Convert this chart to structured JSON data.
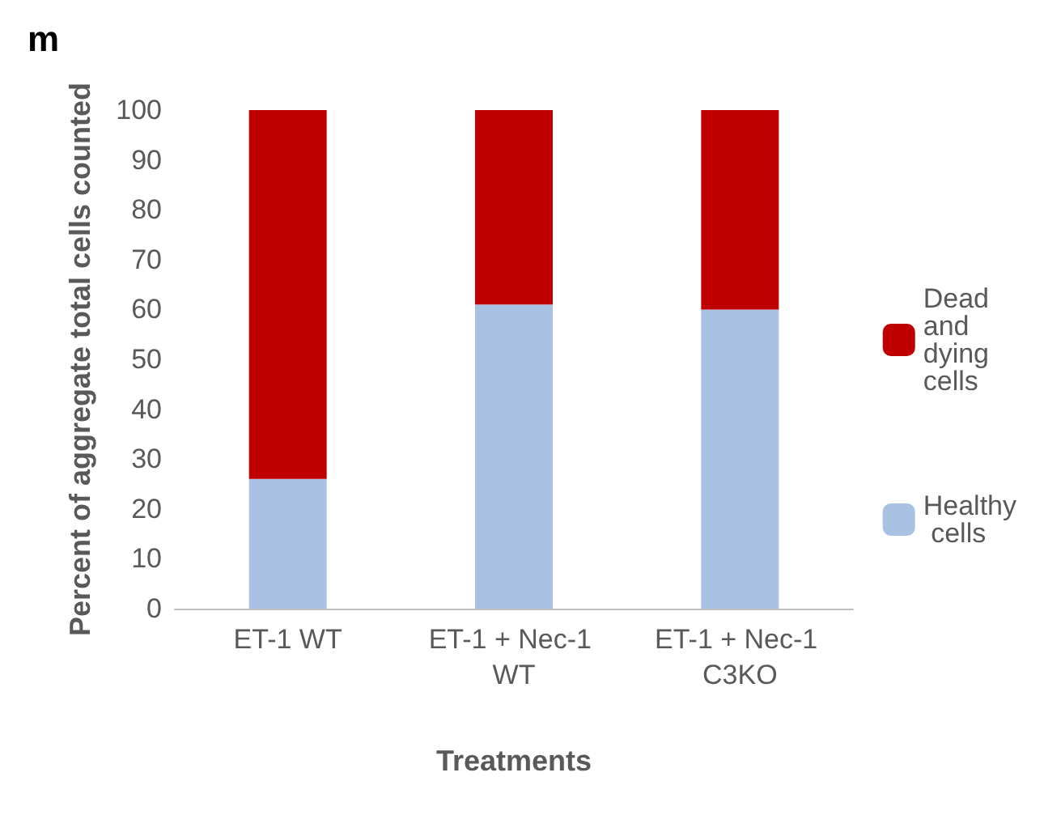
{
  "chart_data": {
    "type": "bar",
    "title": "m",
    "xlabel": "Treatments",
    "ylabel": "Percent of aggregate total cells counted",
    "categories": [
      "ET-1 WT",
      "ET-1 + Nec-1 WT",
      "ET-1 + Nec-1 C3KO"
    ],
    "stacked": true,
    "series": [
      {
        "name": "Healthy cells",
        "color": "#a9c1e2",
        "values": [
          26,
          61,
          60
        ]
      },
      {
        "name": "Dead and dying cells",
        "color": "#c00000",
        "values": [
          74,
          39,
          40
        ]
      }
    ],
    "ylim": [
      0,
      100
    ],
    "yticks": [
      0,
      10,
      20,
      30,
      40,
      50,
      60,
      70,
      80,
      90,
      100
    ],
    "grid": false,
    "legend": "right"
  }
}
